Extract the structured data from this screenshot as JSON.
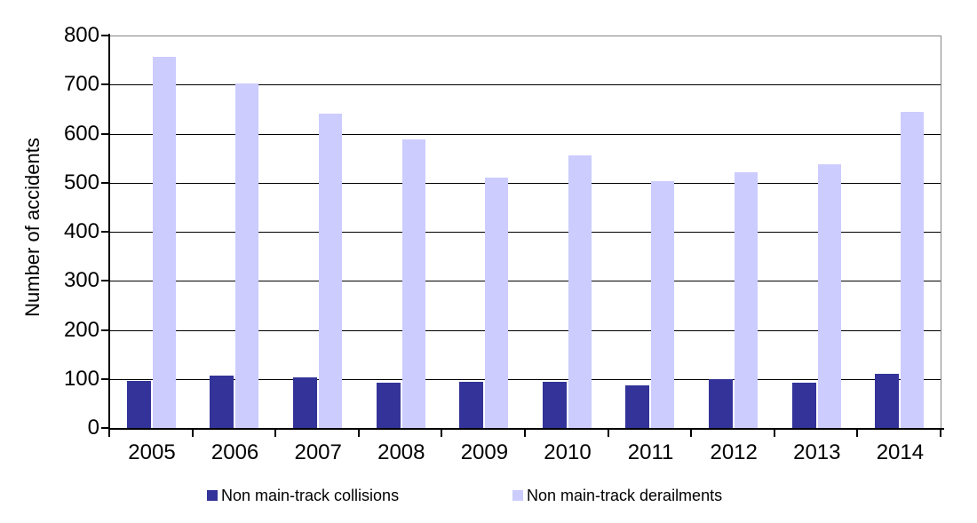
{
  "chart_data": {
    "type": "bar",
    "title": "",
    "xlabel": "",
    "ylabel": "Number of accidents",
    "categories": [
      "2005",
      "2006",
      "2007",
      "2008",
      "2009",
      "2010",
      "2011",
      "2012",
      "2013",
      "2014"
    ],
    "series": [
      {
        "name": "Non main-track collisions",
        "key": "collisions",
        "color": "#333399",
        "values": [
          96,
          107,
          103,
          92,
          94,
          94,
          87,
          100,
          92,
          110
        ]
      },
      {
        "name": "Non main-track derailments",
        "key": "derailments",
        "color": "#CCCCFF",
        "values": [
          757,
          703,
          641,
          588,
          510,
          555,
          503,
          522,
          538,
          645
        ]
      }
    ],
    "ylim": [
      0,
      800
    ],
    "yticks": [
      "0",
      "100",
      "200",
      "300",
      "400",
      "500",
      "600",
      "700",
      "800"
    ],
    "grid": true,
    "legend_position": "bottom"
  },
  "colors": {
    "axis": "#000000",
    "gridline": "#000000",
    "plot_border": "#848484",
    "background": "#ffffff"
  }
}
